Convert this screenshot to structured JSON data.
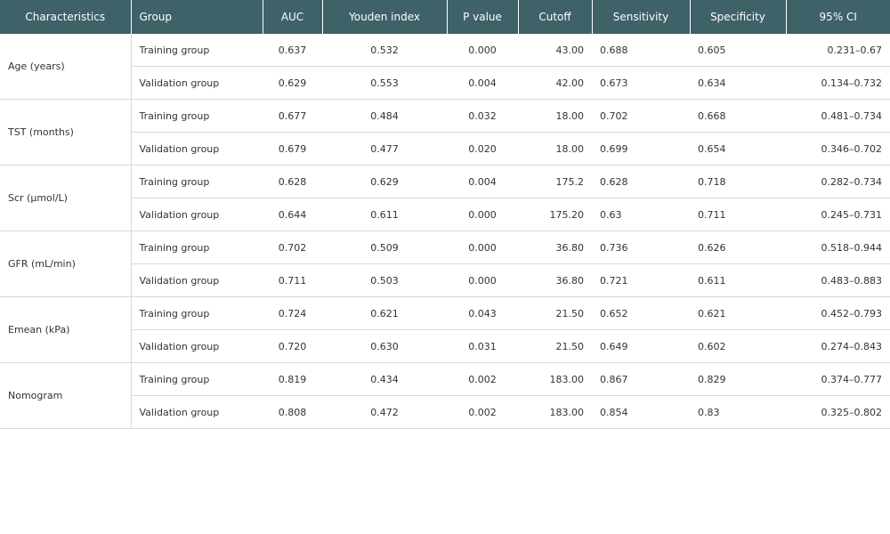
{
  "headers": [
    "Characteristics",
    "Group",
    "AUC",
    "Youden index",
    "P value",
    "Cutoff",
    "Sensitivity",
    "Specificity",
    "95% CI"
  ],
  "rows": [
    {
      "char": "Age (years)",
      "groups": [
        {
          "group": "Training group",
          "auc": "0.637",
          "youden": "0.532",
          "p": "0.000",
          "cutoff": "43.00",
          "sens": "0.688",
          "spec": "0.605",
          "ci": "0.231–0.67"
        },
        {
          "group": "Validation group",
          "auc": "0.629",
          "youden": "0.553",
          "p": "0.004",
          "cutoff": "42.00",
          "sens": "0.673",
          "spec": "0.634",
          "ci": "0.134–0.732"
        }
      ]
    },
    {
      "char": "TST (months)",
      "groups": [
        {
          "group": "Training group",
          "auc": "0.677",
          "youden": "0.484",
          "p": "0.032",
          "cutoff": "18.00",
          "sens": "0.702",
          "spec": "0.668",
          "ci": "0.481–0.734"
        },
        {
          "group": "Validation group",
          "auc": "0.679",
          "youden": "0.477",
          "p": "0.020",
          "cutoff": "18.00",
          "sens": "0.699",
          "spec": "0.654",
          "ci": "0.346–0.702"
        }
      ]
    },
    {
      "char": "Scr (μmol/L)",
      "groups": [
        {
          "group": "Training group",
          "auc": "0.628",
          "youden": "0.629",
          "p": "0.004",
          "cutoff": "175.2",
          "sens": "0.628",
          "spec": "0.718",
          "ci": "0.282–0.734"
        },
        {
          "group": "Validation group",
          "auc": "0.644",
          "youden": "0.611",
          "p": "0.000",
          "cutoff": "175.20",
          "sens": "0.63",
          "spec": "0.711",
          "ci": "0.245–0.731"
        }
      ]
    },
    {
      "char": "GFR (mL/min)",
      "groups": [
        {
          "group": "Training group",
          "auc": "0.702",
          "youden": "0.509",
          "p": "0.000",
          "cutoff": "36.80",
          "sens": "0.736",
          "spec": "0.626",
          "ci": "0.518–0.944"
        },
        {
          "group": "Validation group",
          "auc": "0.711",
          "youden": "0.503",
          "p": "0.000",
          "cutoff": "36.80",
          "sens": "0.721",
          "spec": "0.611",
          "ci": "0.483–0.883"
        }
      ]
    },
    {
      "char": "Emean (kPa)",
      "groups": [
        {
          "group": "Training group",
          "auc": "0.724",
          "youden": "0.621",
          "p": "0.043",
          "cutoff": "21.50",
          "sens": "0.652",
          "spec": "0.621",
          "ci": "0.452–0.793"
        },
        {
          "group": "Validation group",
          "auc": "0.720",
          "youden": "0.630",
          "p": "0.031",
          "cutoff": "21.50",
          "sens": "0.649",
          "spec": "0.602",
          "ci": "0.274–0.843"
        }
      ]
    },
    {
      "char": "Nomogram",
      "groups": [
        {
          "group": "Training group",
          "auc": "0.819",
          "youden": "0.434",
          "p": "0.002",
          "cutoff": "183.00",
          "sens": "0.867",
          "spec": "0.829",
          "ci": "0.374–0.777"
        },
        {
          "group": "Validation group",
          "auc": "0.808",
          "youden": "0.472",
          "p": "0.002",
          "cutoff": "183.00",
          "sens": "0.854",
          "spec": "0.83",
          "ci": "0.325–0.802"
        }
      ]
    }
  ]
}
